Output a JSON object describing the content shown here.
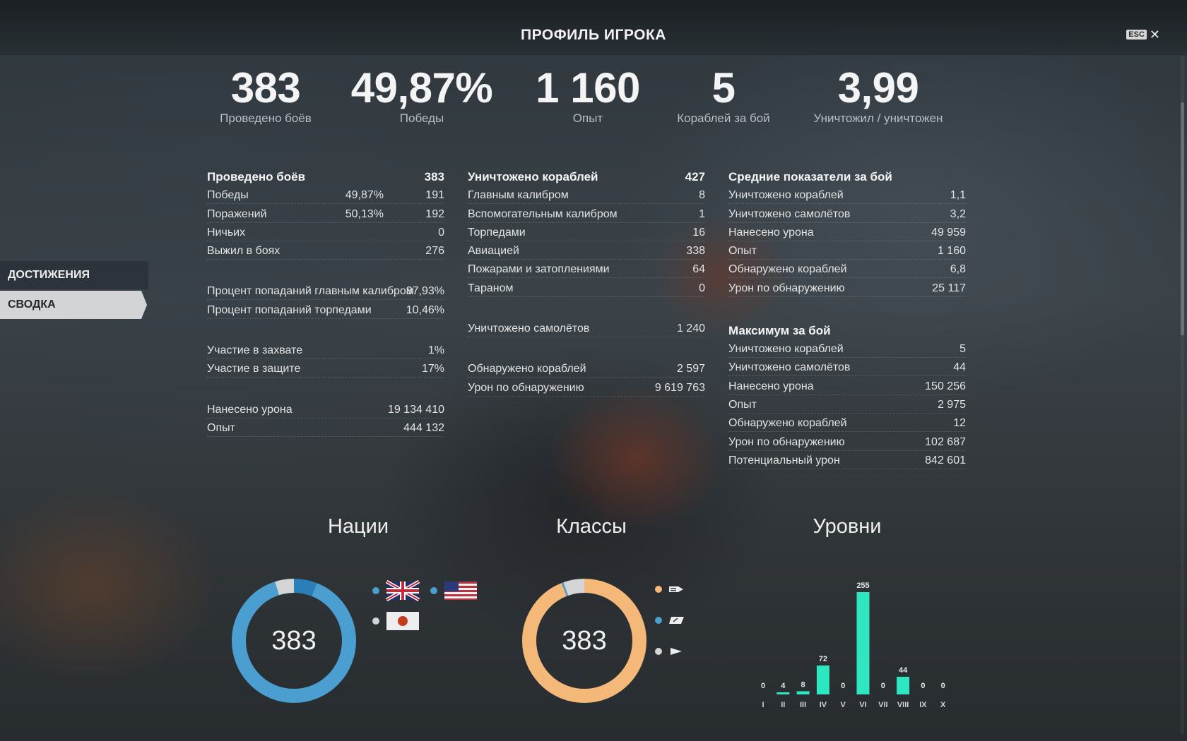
{
  "window": {
    "title": "ПРОФИЛЬ ИГРОКА",
    "esc_label": "ESC",
    "close_glyph": "✕"
  },
  "summary": [
    {
      "value": "383",
      "label": "Проведено боёв"
    },
    {
      "value": "49,87%",
      "label": "Победы"
    },
    {
      "value": "1 160",
      "label": "Опыт"
    },
    {
      "value": "5",
      "label": "Кораблей за бой"
    },
    {
      "value": "3,99",
      "label": "Уничтожил / уничтожен"
    }
  ],
  "sidebar": {
    "items": [
      {
        "label": "ДОСТИЖЕНИЯ"
      },
      {
        "label": "СВОДКА"
      }
    ]
  },
  "col1": {
    "head": {
      "label": "Проведено боёв",
      "value": "383"
    },
    "rows1": [
      {
        "label": "Победы",
        "mid": "49,87%",
        "value": "191"
      },
      {
        "label": "Поражений",
        "mid": "50,13%",
        "value": "192"
      },
      {
        "label": "Ничьих",
        "value": "0"
      },
      {
        "label": "Выжил в боях",
        "value": "276"
      }
    ],
    "rows2": [
      {
        "label": "Процент попаданий главным калибром",
        "value": "37,93%"
      },
      {
        "label": "Процент попаданий торпедами",
        "value": "10,46%"
      }
    ],
    "rows3": [
      {
        "label": "Участие в захвате",
        "value": "1%"
      },
      {
        "label": "Участие в защите",
        "value": "17%"
      }
    ],
    "rows4": [
      {
        "label": "Нанесено урона",
        "value": "19 134 410"
      },
      {
        "label": "Опыт",
        "value": "444 132"
      }
    ]
  },
  "col2": {
    "head": {
      "label": "Уничтожено кораблей",
      "value": "427"
    },
    "rows1": [
      {
        "label": "Главным калибром",
        "value": "8"
      },
      {
        "label": "Вспомогательным калибром",
        "value": "1"
      },
      {
        "label": "Торпедами",
        "value": "16"
      },
      {
        "label": "Авиацией",
        "value": "338"
      },
      {
        "label": "Пожарами и затоплениями",
        "value": "64"
      },
      {
        "label": "Тараном",
        "value": "0"
      }
    ],
    "rows2": [
      {
        "label": "Уничтожено самолётов",
        "value": "1 240"
      }
    ],
    "rows3": [
      {
        "label": "Обнаружено кораблей",
        "value": "2 597"
      },
      {
        "label": "Урон по обнаружению",
        "value": "9 619 763"
      }
    ]
  },
  "col3": {
    "head": {
      "label": "Средние показатели за бой"
    },
    "rows1": [
      {
        "label": "Уничтожено кораблей",
        "value": "1,1"
      },
      {
        "label": "Уничтожено самолётов",
        "value": "3,2"
      },
      {
        "label": "Нанесено урона",
        "value": "49 959"
      },
      {
        "label": "Опыт",
        "value": "1 160"
      },
      {
        "label": "Обнаружено кораблей",
        "value": "6,8"
      },
      {
        "label": "Урон по обнаружению",
        "value": "25 117"
      }
    ],
    "head2": {
      "label": "Максимум за бой"
    },
    "rows2": [
      {
        "label": "Уничтожено кораблей",
        "value": "5"
      },
      {
        "label": "Уничтожено самолётов",
        "value": "44"
      },
      {
        "label": "Нанесено урона",
        "value": "150 256"
      },
      {
        "label": "Опыт",
        "value": "2 975"
      },
      {
        "label": "Обнаружено кораблей",
        "value": "12"
      },
      {
        "label": "Урон по обнаружению",
        "value": "102 687"
      },
      {
        "label": "Потенциальный урон",
        "value": "842 601"
      }
    ]
  },
  "charts_titles": {
    "nations": "Нации",
    "classes": "Классы",
    "levels": "Уровни"
  },
  "colors": {
    "blue": "#4a9fd0",
    "dark_blue": "#2a7fb8",
    "orange": "#f4b878",
    "grey": "#d3d5d7",
    "mint": "#2ee6c0"
  },
  "nations_total": "383",
  "classes_total": "383",
  "chart_data": [
    {
      "type": "pie",
      "title": "Нации",
      "center_label": "383",
      "slices": [
        {
          "legend_icon": "uk-flag-icon",
          "value": 0.89,
          "color": "#4a9fd0"
        },
        {
          "legend_icon": "usa-flag-icon",
          "value": 0.06,
          "color": "#2a7fb8"
        },
        {
          "legend_icon": "japan-flag-icon",
          "value": 0.05,
          "color": "#d3d5d7"
        }
      ]
    },
    {
      "type": "pie",
      "title": "Классы",
      "center_label": "383",
      "slices": [
        {
          "legend_icon": "destroyer-class-icon",
          "value": 0.94,
          "color": "#f4b878"
        },
        {
          "legend_icon": "carrier-class-icon",
          "value": 0.005,
          "color": "#4a9fd0"
        },
        {
          "legend_icon": "cruiser-class-icon",
          "value": 0.055,
          "color": "#d3d5d7"
        }
      ]
    },
    {
      "type": "bar",
      "title": "Уровни",
      "categories": [
        "I",
        "II",
        "III",
        "IV",
        "V",
        "VI",
        "VII",
        "VIII",
        "IX",
        "X"
      ],
      "values": [
        0,
        4,
        8,
        72,
        0,
        255,
        0,
        44,
        0,
        0
      ],
      "color": "#2ee6c0"
    }
  ]
}
